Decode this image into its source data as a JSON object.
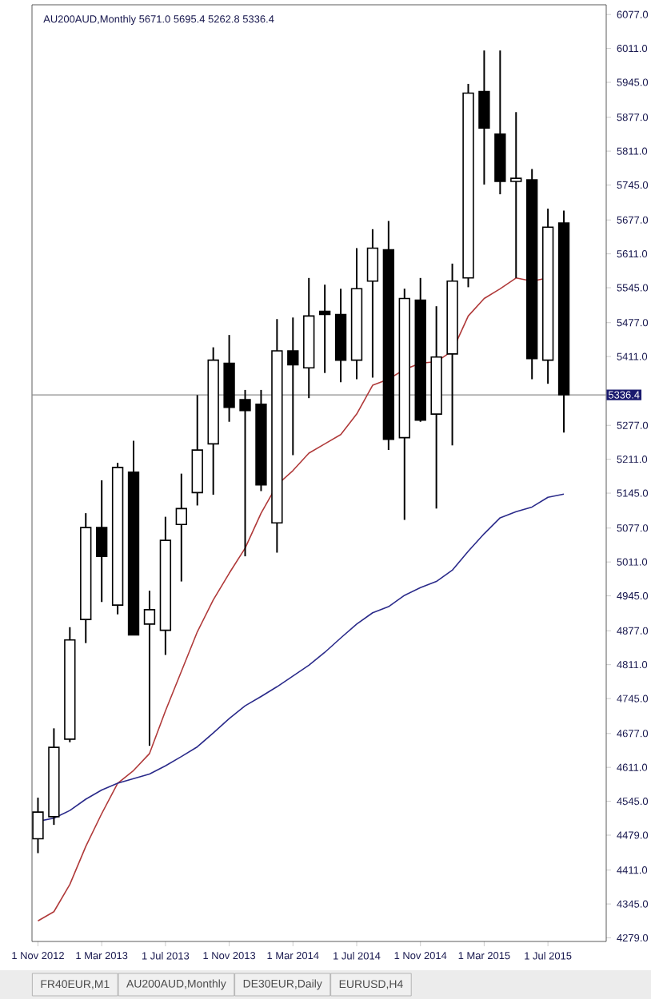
{
  "chart_data": {
    "type": "candlestick",
    "title": "AU200AUD,Monthly  5671.0 5695.4 5262.8 5336.4",
    "x": [
      "2012-11",
      "2012-12",
      "2013-01",
      "2013-02",
      "2013-03",
      "2013-04",
      "2013-05",
      "2013-06",
      "2013-07",
      "2013-08",
      "2013-09",
      "2013-10",
      "2013-11",
      "2013-12",
      "2014-01",
      "2014-02",
      "2014-03",
      "2014-04",
      "2014-05",
      "2014-06",
      "2014-07",
      "2014-08",
      "2014-09",
      "2014-10",
      "2014-11",
      "2014-12",
      "2015-01",
      "2015-02",
      "2015-03",
      "2015-04",
      "2015-05",
      "2015-06",
      "2015-07",
      "2015-08"
    ],
    "ohlc": [
      [
        4472,
        4552,
        4444,
        4524
      ],
      [
        4515,
        4687,
        4499,
        4650
      ],
      [
        4666,
        4884,
        4660,
        4859
      ],
      [
        4899,
        5106,
        4853,
        5078
      ],
      [
        5078,
        5170,
        4933,
        5022
      ],
      [
        4927,
        5204,
        4909,
        5195
      ],
      [
        5186,
        5247,
        4869,
        4869
      ],
      [
        4890,
        4955,
        4653,
        4918
      ],
      [
        4878,
        5099,
        4830,
        5053
      ],
      [
        5084,
        5183,
        4973,
        5115
      ],
      [
        5146,
        5336,
        5121,
        5229
      ],
      [
        5241,
        5429,
        5142,
        5404
      ],
      [
        5398,
        5453,
        5284,
        5312
      ],
      [
        5327,
        5346,
        5022,
        5306
      ],
      [
        5318,
        5346,
        5149,
        5161
      ],
      [
        5087,
        5484,
        5029,
        5422
      ],
      [
        5422,
        5487,
        5219,
        5395
      ],
      [
        5389,
        5564,
        5330,
        5490
      ],
      [
        5499,
        5551,
        5379,
        5493
      ],
      [
        5493,
        5543,
        5361,
        5404
      ],
      [
        5404,
        5622,
        5367,
        5543
      ],
      [
        5558,
        5659,
        5370,
        5622
      ],
      [
        5619,
        5675,
        5229,
        5250
      ],
      [
        5253,
        5543,
        5093,
        5524
      ],
      [
        5521,
        5564,
        5284,
        5287
      ],
      [
        5299,
        5509,
        5115,
        5410
      ],
      [
        5416,
        5592,
        5238,
        5558
      ],
      [
        5564,
        5942,
        5546,
        5924
      ],
      [
        5927,
        6007,
        5746,
        5856
      ],
      [
        5844,
        6007,
        5727,
        5752
      ],
      [
        5752,
        5887,
        5564,
        5758
      ],
      [
        5755,
        5776,
        5367,
        5407
      ],
      [
        5404,
        5699,
        5358,
        5663
      ],
      [
        5671.0,
        5695.4,
        5262.8,
        5336.4
      ]
    ],
    "series": [
      {
        "type": "line",
        "color": "#b03a3a",
        "values": [
          4312,
          4330,
          4383,
          4457,
          4521,
          4580,
          4605,
          4638,
          4721,
          4798,
          4875,
          4937,
          4989,
          5038,
          5106,
          5161,
          5189,
          5223,
          5241,
          5259,
          5299,
          5355,
          5367,
          5386,
          5398,
          5401,
          5422,
          5490,
          5524,
          5543,
          5564,
          5558,
          5564,
          null
        ]
      },
      {
        "type": "line",
        "color": "#2a2a8a",
        "values": [
          4506,
          4512,
          4527,
          4549,
          4567,
          4580,
          4589,
          4598,
          4614,
          4632,
          4651,
          4678,
          4706,
          4731,
          4749,
          4768,
          4789,
          4810,
          4835,
          4863,
          4890,
          4912,
          4924,
          4946,
          4961,
          4973,
          4995,
          5032,
          5066,
          5097,
          5109,
          5118,
          5137,
          5143
        ]
      }
    ],
    "xlim": [
      "2012-10-20",
      "2015-10-21"
    ],
    "ylim": [
      4272,
      6096
    ],
    "xticks": [
      {
        "value": "2012-11",
        "label": "1 Nov 2012"
      },
      {
        "value": "2013-03",
        "label": "1 Mar 2013"
      },
      {
        "value": "2013-07",
        "label": "1 Jul 2013"
      },
      {
        "value": "2013-11",
        "label": "1 Nov 2013"
      },
      {
        "value": "2014-03",
        "label": "1 Mar 2014"
      },
      {
        "value": "2014-07",
        "label": "1 Jul 2014"
      },
      {
        "value": "2014-11",
        "label": "1 Nov 2014"
      },
      {
        "value": "2015-03",
        "label": "1 Mar 2015"
      },
      {
        "value": "2015-07",
        "label": "1 Jul 2015"
      }
    ],
    "yticks": [
      {
        "value": 6077,
        "label": "6077.0"
      },
      {
        "value": 6011,
        "label": "6011.0"
      },
      {
        "value": 5945,
        "label": "5945.0"
      },
      {
        "value": 5877,
        "label": "5877.0"
      },
      {
        "value": 5811,
        "label": "5811.0"
      },
      {
        "value": 5745,
        "label": "5745.0"
      },
      {
        "value": 5677,
        "label": "5677.0"
      },
      {
        "value": 5611,
        "label": "5611.0"
      },
      {
        "value": 5545,
        "label": "5545.0"
      },
      {
        "value": 5477,
        "label": "5477.0"
      },
      {
        "value": 5411,
        "label": "5411.0"
      },
      {
        "value": 5345,
        "label": null
      },
      {
        "value": 5277,
        "label": "5277.0"
      },
      {
        "value": 5211,
        "label": "5211.0"
      },
      {
        "value": 5145,
        "label": "5145.0"
      },
      {
        "value": 5077,
        "label": "5077.0"
      },
      {
        "value": 5011,
        "label": "5011.0"
      },
      {
        "value": 4945,
        "label": "4945.0"
      },
      {
        "value": 4877,
        "label": "4877.0"
      },
      {
        "value": 4811,
        "label": "4811.0"
      },
      {
        "value": 4745,
        "label": "4745.0"
      },
      {
        "value": 4677,
        "label": "4677.0"
      },
      {
        "value": 4611,
        "label": "4611.0"
      },
      {
        "value": 4545,
        "label": "4545.0"
      },
      {
        "value": 4479,
        "label": "4479.0"
      },
      {
        "value": 4411,
        "label": "4411.0"
      },
      {
        "value": 4345,
        "label": "4345.0"
      },
      {
        "value": 4279,
        "label": "4279.0"
      }
    ],
    "ref_lines": [
      {
        "axis": "y",
        "value": 5336.4,
        "label": "5336.4",
        "color": "#8c8c8c"
      }
    ],
    "annotations": [
      "FR40EUR,M1",
      "AU200AUD,Monthly",
      "DE30EUR,Daily",
      "EURUSD,H4"
    ]
  }
}
